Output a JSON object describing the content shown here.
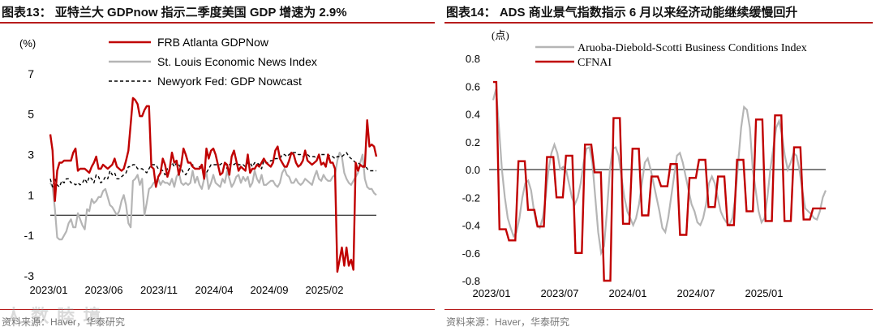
{
  "left_chart": {
    "title": "图表13：  亚特兰大 GDPnow 指示二季度美国 GDP 增速为 2.9%",
    "source": "资料来源：Haver，华泰研究",
    "watermark": "人 数 睦 境",
    "chart_data": {
      "type": "line",
      "unit_label": "(%)",
      "ylim": [
        -3,
        8
      ],
      "y_ticks": [
        7,
        5,
        3,
        1,
        -1,
        -3
      ],
      "x_ticks": [
        "2023/01",
        "2023/06",
        "2023/11",
        "2024/04",
        "2024/09",
        "2025/02"
      ],
      "colors": {
        "FRB Atlanta GDPNow": "#c00000",
        "St. Louis Economic News Index": "#b5b5b5",
        "Newyork Fed: GDP Nowcast": "#000000"
      },
      "series": [
        {
          "name": "FRB Atlanta GDPNow",
          "values": [
            4.0,
            3.2,
            0.7,
            2.2,
            2.6,
            2.6,
            2.7,
            2.7,
            2.7,
            2.7,
            3.1,
            3.3,
            2.2,
            2.3,
            2.3,
            2.3,
            2.2,
            2.1,
            2.4,
            2.6,
            2.9,
            2.3,
            2.3,
            2.5,
            2.4,
            2.3,
            2.4,
            2.5,
            2.8,
            2.4,
            2.3,
            2.2,
            2.3,
            2.7,
            3.2,
            4.5,
            5.8,
            5.7,
            5.5,
            4.9,
            4.9,
            5.2,
            5.4,
            5.4,
            2.4,
            2.3,
            1.4,
            1.9,
            2.1,
            2.8,
            2.5,
            1.9,
            2.3,
            3.1,
            2.6,
            2.7,
            2.0,
            2.5,
            3.3,
            3.0,
            2.6,
            2.6,
            2.4,
            2.3,
            2.3,
            2.3,
            2.5,
            1.8,
            3.3,
            2.8,
            3.2,
            3.3,
            3.0,
            2.5,
            2.0,
            2.1,
            2.6,
            2.5,
            2.0,
            2.9,
            3.2,
            2.7,
            2.2,
            2.4,
            2.3,
            2.2,
            3.0,
            2.1,
            2.3,
            2.3,
            2.5,
            2.4,
            2.6,
            2.8,
            2.6,
            2.5,
            2.4,
            2.6,
            3.2,
            3.4,
            2.8,
            2.6,
            2.4,
            2.4,
            2.7,
            3.1,
            3.0,
            2.6,
            2.4,
            2.5,
            2.7,
            3.2,
            2.7,
            2.6,
            2.5,
            2.6,
            2.7,
            3.0,
            2.5,
            2.6,
            2.4,
            3.0,
            2.6,
            2.6,
            2.3,
            -2.8,
            -2.2,
            -1.6,
            -2.5,
            -1.6,
            -2.5,
            -2.2,
            -2.7,
            2.6,
            2.2,
            2.5,
            2.4,
            2.4,
            4.7,
            3.4,
            3.5,
            3.4,
            2.9
          ]
        },
        {
          "name": "St. Louis Economic News Index",
          "values": [
            1.6,
            1.4,
            0.3,
            -1.1,
            -1.2,
            -1.2,
            -1.0,
            -0.8,
            -0.4,
            -0.2,
            -0.6,
            -0.6,
            0.1,
            -0.2,
            -0.5,
            -0.7,
            0.3,
            0.2,
            0.8,
            0.6,
            0.7,
            0.9,
            0.9,
            1.2,
            1.3,
            0.9,
            0.5,
            0.4,
            0.2,
            0.0,
            0.2,
            0.7,
            1.0,
            0.5,
            -0.4,
            -0.6,
            1.7,
            1.8,
            2.0,
            1.5,
            1.8,
            0.0,
            0.6,
            1.3,
            1.4,
            1.6,
            1.7,
            1.8,
            1.5,
            1.7,
            1.6,
            1.6,
            1.5,
            1.8,
            1.4,
            1.9,
            2.1,
            1.6,
            1.5,
            1.6,
            1.5,
            1.6,
            2.2,
            1.6,
            1.9,
            1.5,
            1.3,
            1.8,
            2.1,
            1.3,
            1.6,
            2.0,
            1.6,
            1.5,
            1.4,
            1.8,
            1.6,
            2.2,
            1.8,
            1.4,
            1.6,
            1.9,
            2.0,
            1.6,
            1.9,
            1.7,
            1.9,
            1.4,
            1.6,
            2.2,
            1.8,
            1.6,
            2.0,
            1.5,
            1.5,
            1.6,
            1.7,
            1.7,
            1.5,
            1.4,
            1.6,
            2.1,
            2.3,
            2.0,
            1.9,
            1.6,
            1.6,
            1.8,
            1.6,
            1.5,
            1.6,
            1.8,
            1.7,
            1.6,
            1.5,
            1.9,
            2.2,
            1.8,
            1.7,
            2.0,
            1.8,
            1.7,
            1.7,
            1.9,
            2.0,
            2.7,
            3.1,
            2.9,
            2.1,
            1.8,
            1.6,
            1.5,
            1.7,
            1.9,
            2.1,
            2.6,
            3.0,
            1.8,
            1.4,
            1.3,
            1.3,
            1.1,
            1.0
          ]
        },
        {
          "name": "Newyork Fed: GDP Nowcast",
          "values": [
            1.8,
            1.4,
            1.8,
            1.5,
            1.4,
            1.7,
            1.6,
            1.8,
            1.8,
            1.6,
            1.6,
            1.5,
            1.6,
            1.5,
            1.6,
            1.8,
            1.6,
            1.9,
            1.8,
            1.6,
            2.0,
            1.9,
            1.6,
            1.7,
            1.9,
            1.8,
            2.2,
            2.0,
            2.1,
            1.8,
            1.8,
            1.9,
            2.0,
            2.1,
            2.4,
            2.4,
            2.5,
            2.5,
            2.3,
            2.3,
            2.3,
            2.2,
            2.1,
            2.3,
            2.5,
            2.5,
            2.5,
            2.3,
            2.3,
            2.2,
            2.0,
            2.3,
            2.4,
            2.6,
            2.4,
            2.6,
            2.5,
            2.3,
            2.1,
            2.0,
            2.2,
            2.4,
            2.5,
            2.3,
            2.3,
            2.4,
            2.3,
            2.1,
            2.1,
            2.3,
            2.5,
            2.5,
            2.5,
            2.5,
            2.5,
            2.6,
            2.6,
            2.3,
            2.5,
            2.6,
            2.5,
            2.6,
            2.5,
            2.5,
            2.5,
            2.4,
            2.6,
            2.6,
            2.4,
            2.6,
            2.6,
            2.5,
            2.3,
            2.7,
            2.6,
            2.6,
            2.7,
            2.7,
            2.8,
            2.8,
            2.8,
            3.0,
            3.0,
            2.9,
            3.0,
            3.1,
            3.1,
            3.1,
            3.0,
            3.0,
            2.9,
            3.0,
            3.0,
            2.9,
            2.9,
            2.9,
            2.8,
            2.9,
            3.0,
            3.0,
            3.0,
            3.0,
            2.9,
            2.9,
            2.8,
            2.9,
            2.9,
            2.9,
            3.0,
            3.1,
            2.9,
            2.8,
            2.7,
            2.6,
            2.6,
            2.5,
            2.4,
            2.5,
            2.3,
            2.2,
            2.2,
            2.2,
            2.2
          ]
        }
      ]
    }
  },
  "right_chart": {
    "title": "图表14：  ADS 商业景气指数指示 6 月以来经济动能继续缓慢回升",
    "source": "资料来源：Haver，华泰研究",
    "chart_data": {
      "type": "line",
      "unit_label": "(点)",
      "ylim": [
        -0.8,
        0.8
      ],
      "y_ticks": [
        "0.8",
        "0.6",
        "0.4",
        "0.2",
        "0.0",
        "-0.2",
        "-0.4",
        "-0.6",
        "-0.8"
      ],
      "x_ticks": [
        "2023/01",
        "2023/07",
        "2024/01",
        "2024/07",
        "2025/01"
      ],
      "colors": {
        "Aruoba-Diebold-Scotti Business Conditions Index": "#b5b5b5",
        "CFNAI": "#c00000"
      },
      "series": [
        {
          "name": "Aruoba-Diebold-Scotti Business Conditions Index",
          "values": [
            0.5,
            0.58,
            0.3,
            0.0,
            -0.2,
            -0.35,
            -0.42,
            -0.48,
            -0.45,
            -0.35,
            -0.2,
            -0.1,
            -0.08,
            -0.15,
            -0.3,
            -0.4,
            -0.42,
            -0.35,
            -0.2,
            0.0,
            0.12,
            0.18,
            0.12,
            0.0,
            0.02,
            0.0,
            -0.1,
            -0.2,
            -0.25,
            -0.2,
            -0.1,
            0.05,
            0.15,
            0.16,
            0.05,
            -0.2,
            -0.45,
            -0.6,
            -0.55,
            -0.3,
            0.0,
            0.15,
            0.16,
            0.1,
            -0.05,
            -0.2,
            -0.3,
            -0.35,
            -0.4,
            -0.35,
            -0.25,
            -0.1,
            0.05,
            0.08,
            0.0,
            -0.1,
            -0.2,
            -0.3,
            -0.42,
            -0.45,
            -0.35,
            -0.2,
            -0.05,
            0.1,
            0.12,
            0.05,
            -0.05,
            -0.15,
            -0.25,
            -0.3,
            -0.38,
            -0.4,
            -0.35,
            -0.25,
            -0.1,
            -0.05,
            -0.1,
            -0.2,
            -0.3,
            -0.35,
            -0.38,
            -0.4,
            -0.35,
            -0.2,
            0.05,
            0.3,
            0.45,
            0.43,
            0.3,
            0.0,
            -0.15,
            -0.3,
            -0.38,
            -0.35,
            -0.2,
            0.0,
            0.15,
            0.3,
            0.35,
            0.25,
            0.1,
            0.0,
            0.05,
            0.12,
            0.1,
            0.0,
            -0.15,
            -0.28,
            -0.3,
            -0.32,
            -0.35,
            -0.36,
            -0.3,
            -0.2,
            -0.15
          ]
        },
        {
          "name": "CFNAI",
          "values": [
            0.63,
            0.63,
            -0.43,
            -0.43,
            -0.43,
            -0.51,
            -0.51,
            -0.51,
            0.06,
            0.06,
            0.06,
            -0.29,
            -0.29,
            -0.29,
            -0.41,
            -0.41,
            -0.41,
            0.09,
            0.09,
            0.09,
            -0.2,
            -0.2,
            -0.2,
            0.1,
            0.1,
            0.1,
            -0.6,
            -0.6,
            -0.6,
            0.18,
            0.18,
            0.18,
            -0.02,
            -0.02,
            -0.02,
            -0.8,
            -0.8,
            -0.8,
            0.37,
            0.37,
            0.37,
            -0.39,
            -0.39,
            -0.39,
            0.15,
            0.15,
            0.15,
            -0.33,
            -0.33,
            -0.33,
            -0.05,
            -0.05,
            -0.05,
            -0.12,
            -0.12,
            -0.12,
            0.04,
            0.04,
            0.04,
            -0.47,
            -0.47,
            -0.47,
            -0.06,
            -0.06,
            -0.06,
            0.07,
            0.07,
            0.07,
            -0.27,
            -0.27,
            -0.27,
            -0.05,
            -0.05,
            -0.05,
            -0.4,
            -0.4,
            -0.4,
            0.07,
            0.07,
            0.07,
            -0.3,
            -0.3,
            -0.3,
            0.36,
            0.36,
            0.36,
            -0.37,
            -0.37,
            -0.37,
            0.39,
            0.39,
            0.39,
            -0.37,
            -0.37,
            -0.37,
            0.16,
            0.16,
            0.16,
            -0.36,
            -0.36,
            -0.36,
            -0.28,
            -0.28,
            -0.28,
            -0.28,
            -0.28
          ]
        }
      ]
    }
  }
}
